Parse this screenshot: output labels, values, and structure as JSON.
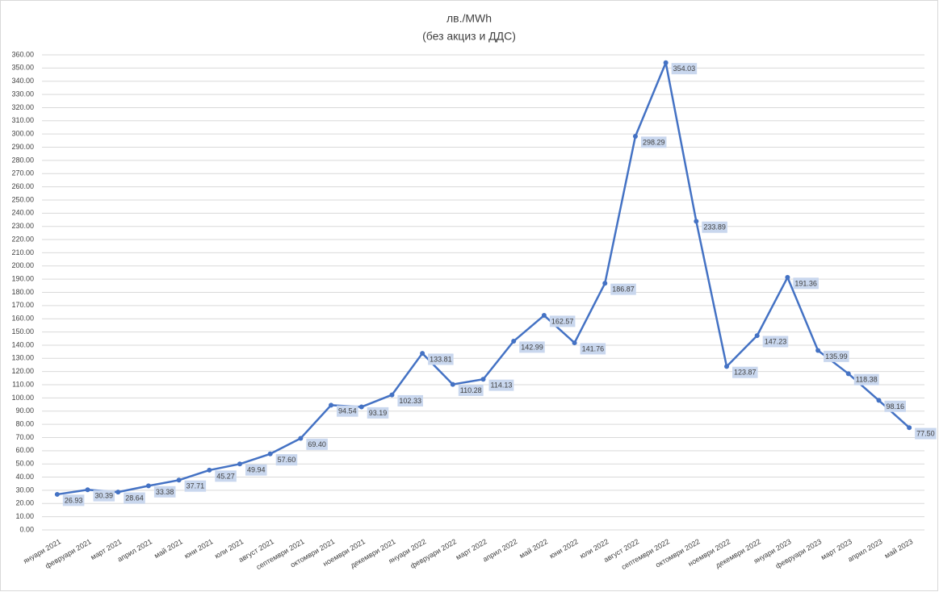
{
  "chart_data": {
    "type": "line",
    "title": "лв./MWh",
    "subtitle": "(без акциз и ДДС)",
    "categories": [
      "януари 2021",
      "февруари 2021",
      "март 2021",
      "април 2021",
      "май 2021",
      "юни 2021",
      "юли 2021",
      "август 2021",
      "септември 2021",
      "октомври 2021",
      "ноември 2021",
      "декември 2021",
      "януари 2022",
      "февруари 2022",
      "март 2022",
      "април 2022",
      "май 2022",
      "юни 2022",
      "юли 2022",
      "август 2022",
      "септември 2022",
      "октомври 2022",
      "ноември 2022",
      "декември 2022",
      "януари 2023",
      "февруари 2023",
      "март 2023",
      "април 2023",
      "май 2023"
    ],
    "values": [
      26.93,
      30.39,
      28.64,
      33.38,
      37.71,
      45.27,
      49.94,
      57.6,
      69.4,
      94.54,
      93.19,
      102.33,
      133.81,
      110.28,
      114.13,
      142.99,
      162.57,
      141.76,
      186.87,
      298.29,
      354.03,
      233.89,
      123.87,
      147.23,
      191.36,
      135.99,
      118.38,
      98.16,
      77.5
    ],
    "value_labels": [
      "26.93",
      "30.39",
      "28.64",
      "33.38",
      "37.71",
      "45.27",
      "49.94",
      "57.60",
      "69.40",
      "94.54",
      "93.19",
      "102.33",
      "133.81",
      "110.28",
      "114.13",
      "142.99",
      "162.57",
      "141.76",
      "186.87",
      "298.29",
      "354.03",
      "233.89",
      "123.87",
      "147.23",
      "191.36",
      "135.99",
      "118.38",
      "98.16",
      "77.50"
    ],
    "color": "#4472c4",
    "grid": true,
    "ylim": [
      0,
      360
    ],
    "yticks": [
      {
        "value": 0,
        "label": "0.00"
      },
      {
        "value": 10,
        "label": "10.00"
      },
      {
        "value": 20,
        "label": "20.00"
      },
      {
        "value": 30,
        "label": "30.00"
      },
      {
        "value": 40,
        "label": "40.00"
      },
      {
        "value": 50,
        "label": "50.00"
      },
      {
        "value": 60,
        "label": "60.00"
      },
      {
        "value": 70,
        "label": "70.00"
      },
      {
        "value": 80,
        "label": "80.00"
      },
      {
        "value": 90,
        "label": "90.00"
      },
      {
        "value": 100,
        "label": "100.00"
      },
      {
        "value": 110,
        "label": "110.00"
      },
      {
        "value": 120,
        "label": "120.00"
      },
      {
        "value": 130,
        "label": "130.00"
      },
      {
        "value": 140,
        "label": "140.00"
      },
      {
        "value": 150,
        "label": "150.00"
      },
      {
        "value": 160,
        "label": "160.00"
      },
      {
        "value": 170,
        "label": "170.00"
      },
      {
        "value": 180,
        "label": "180.00"
      },
      {
        "value": 190,
        "label": "190.00"
      },
      {
        "value": 200,
        "label": "200.00"
      },
      {
        "value": 210,
        "label": "210.00"
      },
      {
        "value": 220,
        "label": "220.00"
      },
      {
        "value": 230,
        "label": "230.00"
      },
      {
        "value": 240,
        "label": "240.00"
      },
      {
        "value": 250,
        "label": "250.00"
      },
      {
        "value": 260,
        "label": "260.00"
      },
      {
        "value": 270,
        "label": "270.00"
      },
      {
        "value": 280,
        "label": "280.00"
      },
      {
        "value": 290,
        "label": "290.00"
      },
      {
        "value": 300,
        "label": "300.00"
      },
      {
        "value": 310,
        "label": "310.00"
      },
      {
        "value": 320,
        "label": "320.00"
      },
      {
        "value": 330,
        "label": "330.00"
      },
      {
        "value": 340,
        "label": "340.00"
      },
      {
        "value": 350,
        "label": "350.00"
      },
      {
        "value": 360,
        "label": "360.00"
      }
    ]
  }
}
